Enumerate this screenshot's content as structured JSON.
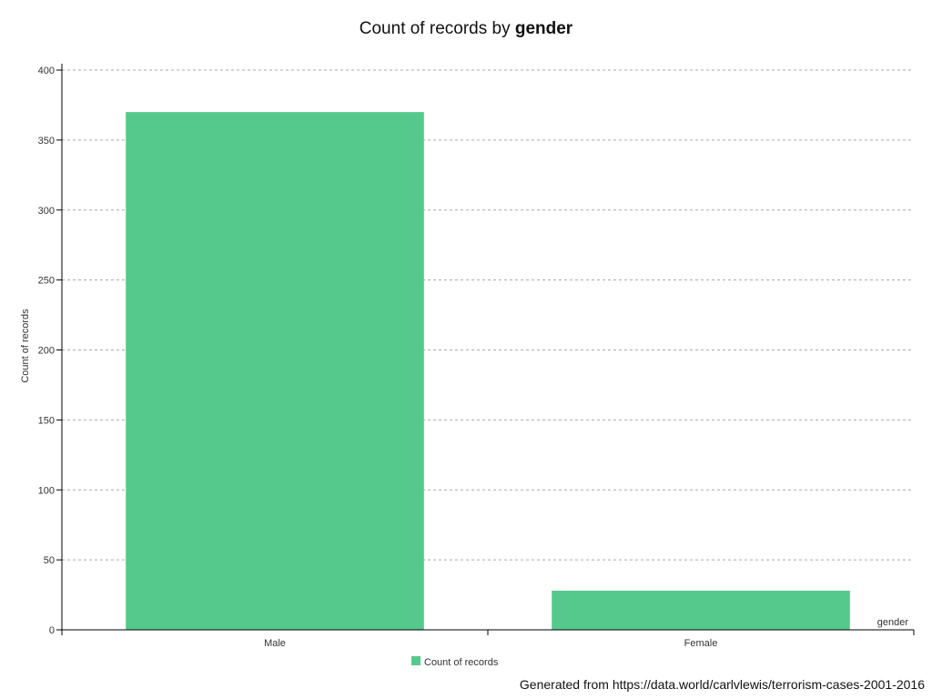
{
  "chart_data": {
    "type": "bar",
    "title": "Count of records by",
    "title_field": "gender",
    "categories": [
      "Male",
      "Female"
    ],
    "series": [
      {
        "name": "Count of records",
        "values": [
          370,
          28
        ]
      }
    ],
    "xlabel": "gender",
    "ylabel": "Count of records",
    "ylim": [
      0,
      400
    ],
    "yticks": [
      0,
      50,
      100,
      150,
      200,
      250,
      300,
      350,
      400
    ],
    "grid": true,
    "legend_position": "bottom-center",
    "bar_color": "#55c98b"
  },
  "footer": {
    "source": "Generated from https://data.world/carlvlewis/terrorism-cases-2001-2016"
  }
}
